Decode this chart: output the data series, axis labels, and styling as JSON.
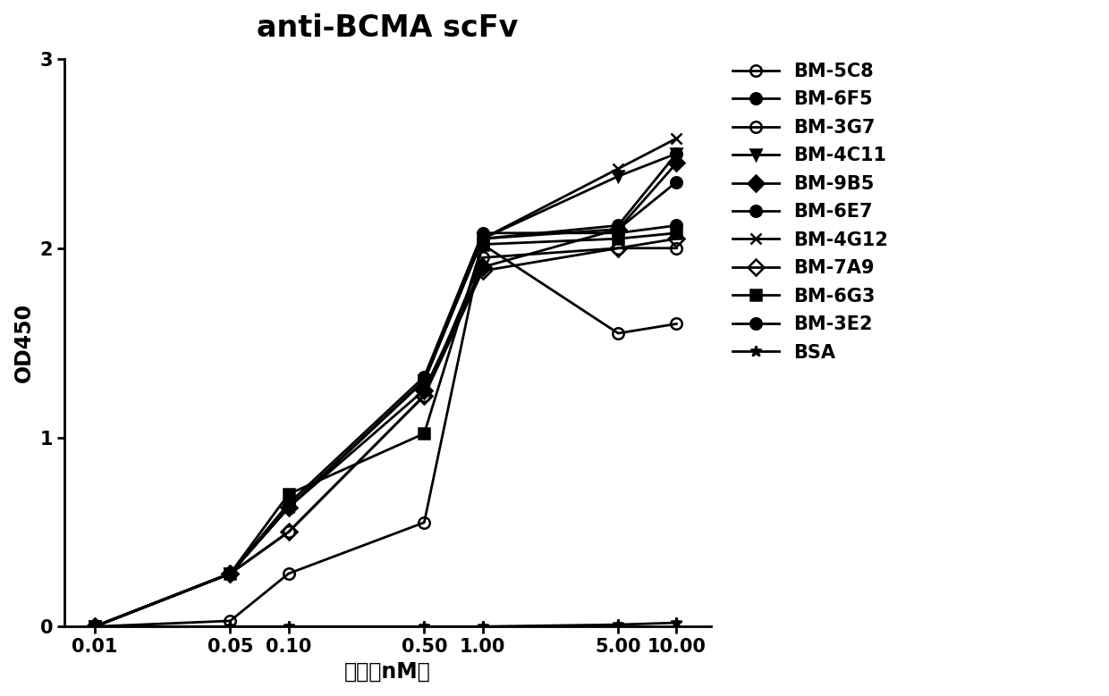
{
  "title": "anti-BCMA scFv",
  "xlabel": "浓度（nM）",
  "ylabel": "OD450",
  "x_values": [
    0.01,
    0.05,
    0.1,
    0.5,
    1.0,
    5.0,
    10.0
  ],
  "series": [
    {
      "label": "BM-5C8",
      "marker": "o",
      "fillstyle": "none",
      "color": "#000000",
      "y": [
        0.0,
        0.03,
        0.28,
        0.55,
        2.02,
        1.55,
        1.6
      ]
    },
    {
      "label": "BM-6F5",
      "marker": "o",
      "fillstyle": "full",
      "color": "#000000",
      "y": [
        0.0,
        0.28,
        0.63,
        1.3,
        2.05,
        2.1,
        2.35
      ]
    },
    {
      "label": "BM-3G7",
      "marker": "o",
      "fillstyle": "none",
      "color": "#000000",
      "y": [
        0.0,
        0.28,
        0.5,
        1.22,
        1.95,
        2.0,
        2.0
      ]
    },
    {
      "label": "BM-4C11",
      "marker": "v",
      "fillstyle": "full",
      "color": "#000000",
      "y": [
        0.0,
        0.28,
        0.63,
        1.3,
        2.05,
        2.38,
        2.5
      ]
    },
    {
      "label": "BM-9B5",
      "marker": "D",
      "fillstyle": "full",
      "color": "#000000",
      "y": [
        0.0,
        0.28,
        0.63,
        1.25,
        1.9,
        2.1,
        2.45
      ]
    },
    {
      "label": "BM-6E7",
      "marker": "o",
      "fillstyle": "full",
      "color": "#000000",
      "y": [
        0.0,
        0.28,
        0.65,
        1.32,
        2.08,
        2.08,
        2.12
      ]
    },
    {
      "label": "BM-4G12",
      "marker": "x",
      "fillstyle": "full",
      "color": "#000000",
      "y": [
        0.0,
        0.28,
        0.63,
        1.3,
        2.05,
        2.42,
        2.58
      ]
    },
    {
      "label": "BM-7A9",
      "marker": "D",
      "fillstyle": "none",
      "color": "#000000",
      "y": [
        0.0,
        0.28,
        0.5,
        1.22,
        1.88,
        2.0,
        2.05
      ]
    },
    {
      "label": "BM-6G3",
      "marker": "s",
      "fillstyle": "full",
      "color": "#000000",
      "y": [
        0.0,
        0.28,
        0.7,
        1.02,
        2.02,
        2.05,
        2.08
      ]
    },
    {
      "label": "BM-3E2",
      "marker": "o",
      "fillstyle": "full",
      "color": "#000000",
      "y": [
        0.0,
        0.28,
        0.63,
        1.3,
        2.05,
        2.12,
        2.5
      ]
    },
    {
      "label": "BSA",
      "marker": "*",
      "fillstyle": "full",
      "color": "#000000",
      "y": [
        0.0,
        0.0,
        0.0,
        0.0,
        0.0,
        0.01,
        0.02
      ]
    }
  ],
  "ylim": [
    0,
    3
  ],
  "yticks": [
    0,
    1,
    2,
    3
  ],
  "x_tick_labels": [
    "0.01",
    "0.05",
    "0.10",
    "0.50",
    "1.00",
    "5.00",
    "10.00"
  ],
  "background_color": "#ffffff",
  "title_fontsize": 24,
  "label_fontsize": 17,
  "tick_fontsize": 15,
  "legend_fontsize": 15,
  "linewidth": 2.0,
  "markersize": 9
}
